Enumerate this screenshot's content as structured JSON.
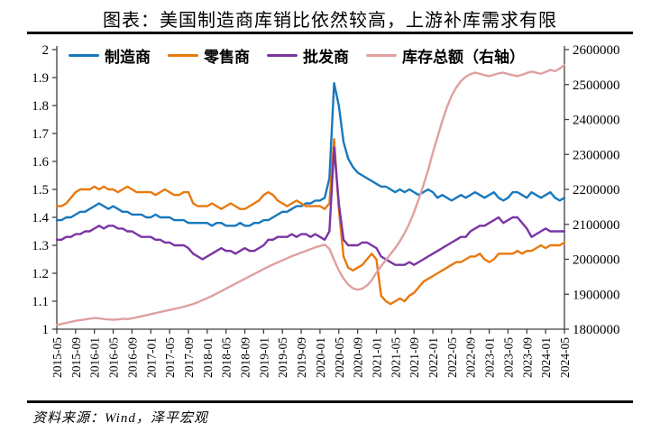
{
  "title": "图表：美国制造商库销比依然较高，上游补库需求有限",
  "source": "资料来源：Wind，泽平宏观",
  "colors": {
    "manufacturer": "#1878BD",
    "retailer": "#E8790F",
    "wholesaler": "#7A34A4",
    "total_inventory": "#DFA0A0",
    "axis": "#404040",
    "text": "#000000"
  },
  "chart_data": {
    "type": "line",
    "title": "图表：美国制造商库销比依然较高，上游补库需求有限",
    "xlabel": "",
    "ylabel_left": "",
    "ylabel_right": "",
    "grid": false,
    "legend_position": "top",
    "left_axis": {
      "min": 1,
      "max": 2,
      "ticks": [
        "2",
        "1.9",
        "1.8",
        "1.7",
        "1.6",
        "1.5",
        "1.4",
        "1.3",
        "1.2",
        "1.1",
        "1"
      ]
    },
    "right_axis": {
      "min": 1800000,
      "max": 2600000,
      "ticks": [
        "2600000",
        "2500000",
        "2400000",
        "2300000",
        "2200000",
        "2100000",
        "2000000",
        "1900000",
        "1800000"
      ]
    },
    "x_tick_labels": [
      "2015-05",
      "2015-09",
      "2016-01",
      "2016-05",
      "2016-09",
      "2017-01",
      "2017-05",
      "2017-09",
      "2018-01",
      "2018-05",
      "2018-09",
      "2019-01",
      "2019-05",
      "2019-09",
      "2020-01",
      "2020-05",
      "2020-09",
      "2021-01",
      "2021-05",
      "2021-09",
      "2022-01",
      "2022-05",
      "2022-09",
      "2023-01",
      "2023-05",
      "2023-09",
      "2024-01",
      "2024-05"
    ],
    "x": [
      "2015-05",
      "2015-06",
      "2015-07",
      "2015-08",
      "2015-09",
      "2015-10",
      "2015-11",
      "2015-12",
      "2016-01",
      "2016-02",
      "2016-03",
      "2016-04",
      "2016-05",
      "2016-06",
      "2016-07",
      "2016-08",
      "2016-09",
      "2016-10",
      "2016-11",
      "2016-12",
      "2017-01",
      "2017-02",
      "2017-03",
      "2017-04",
      "2017-05",
      "2017-06",
      "2017-07",
      "2017-08",
      "2017-09",
      "2017-10",
      "2017-11",
      "2017-12",
      "2018-01",
      "2018-02",
      "2018-03",
      "2018-04",
      "2018-05",
      "2018-06",
      "2018-07",
      "2018-08",
      "2018-09",
      "2018-10",
      "2018-11",
      "2018-12",
      "2019-01",
      "2019-02",
      "2019-03",
      "2019-04",
      "2019-05",
      "2019-06",
      "2019-07",
      "2019-08",
      "2019-09",
      "2019-10",
      "2019-11",
      "2019-12",
      "2020-01",
      "2020-02",
      "2020-03",
      "2020-04",
      "2020-05",
      "2020-06",
      "2020-07",
      "2020-08",
      "2020-09",
      "2020-10",
      "2020-11",
      "2020-12",
      "2021-01",
      "2021-02",
      "2021-03",
      "2021-04",
      "2021-05",
      "2021-06",
      "2021-07",
      "2021-08",
      "2021-09",
      "2021-10",
      "2021-11",
      "2021-12",
      "2022-01",
      "2022-02",
      "2022-03",
      "2022-04",
      "2022-05",
      "2022-06",
      "2022-07",
      "2022-08",
      "2022-09",
      "2022-10",
      "2022-11",
      "2022-12",
      "2023-01",
      "2023-02",
      "2023-03",
      "2023-04",
      "2023-05",
      "2023-06",
      "2023-07",
      "2023-08",
      "2023-09",
      "2023-10",
      "2023-11",
      "2023-12",
      "2024-01",
      "2024-02",
      "2024-03",
      "2024-04",
      "2024-05"
    ],
    "series": [
      {
        "id": "manufacturer",
        "name": "制造商",
        "axis": "left",
        "color": "#1878BD",
        "values": [
          1.39,
          1.39,
          1.4,
          1.4,
          1.41,
          1.42,
          1.42,
          1.43,
          1.44,
          1.45,
          1.44,
          1.43,
          1.44,
          1.43,
          1.42,
          1.42,
          1.41,
          1.41,
          1.41,
          1.4,
          1.4,
          1.41,
          1.4,
          1.4,
          1.4,
          1.39,
          1.39,
          1.39,
          1.38,
          1.38,
          1.38,
          1.38,
          1.38,
          1.37,
          1.38,
          1.38,
          1.37,
          1.37,
          1.37,
          1.38,
          1.37,
          1.37,
          1.38,
          1.38,
          1.39,
          1.39,
          1.4,
          1.41,
          1.42,
          1.42,
          1.43,
          1.44,
          1.44,
          1.45,
          1.45,
          1.46,
          1.46,
          1.47,
          1.54,
          1.88,
          1.8,
          1.67,
          1.61,
          1.58,
          1.56,
          1.55,
          1.54,
          1.53,
          1.52,
          1.51,
          1.51,
          1.5,
          1.49,
          1.5,
          1.49,
          1.5,
          1.49,
          1.48,
          1.49,
          1.5,
          1.49,
          1.47,
          1.48,
          1.47,
          1.46,
          1.47,
          1.48,
          1.47,
          1.48,
          1.49,
          1.48,
          1.47,
          1.48,
          1.49,
          1.47,
          1.46,
          1.47,
          1.49,
          1.49,
          1.48,
          1.47,
          1.49,
          1.48,
          1.47,
          1.48,
          1.49,
          1.47,
          1.46,
          1.47
        ]
      },
      {
        "id": "retailer",
        "name": "零售商",
        "axis": "left",
        "color": "#E8790F",
        "values": [
          1.44,
          1.44,
          1.45,
          1.47,
          1.49,
          1.5,
          1.5,
          1.5,
          1.51,
          1.5,
          1.51,
          1.5,
          1.5,
          1.49,
          1.5,
          1.51,
          1.5,
          1.49,
          1.49,
          1.49,
          1.49,
          1.48,
          1.49,
          1.5,
          1.49,
          1.48,
          1.48,
          1.49,
          1.49,
          1.45,
          1.44,
          1.44,
          1.44,
          1.45,
          1.44,
          1.43,
          1.44,
          1.45,
          1.44,
          1.43,
          1.43,
          1.44,
          1.45,
          1.46,
          1.48,
          1.49,
          1.48,
          1.46,
          1.45,
          1.44,
          1.45,
          1.46,
          1.45,
          1.44,
          1.44,
          1.44,
          1.44,
          1.43,
          1.45,
          1.68,
          1.43,
          1.26,
          1.22,
          1.21,
          1.22,
          1.23,
          1.25,
          1.27,
          1.25,
          1.12,
          1.1,
          1.09,
          1.1,
          1.11,
          1.1,
          1.12,
          1.13,
          1.15,
          1.17,
          1.18,
          1.19,
          1.2,
          1.21,
          1.22,
          1.23,
          1.24,
          1.24,
          1.25,
          1.26,
          1.26,
          1.27,
          1.25,
          1.24,
          1.25,
          1.27,
          1.27,
          1.27,
          1.27,
          1.28,
          1.27,
          1.28,
          1.28,
          1.29,
          1.3,
          1.29,
          1.3,
          1.3,
          1.3,
          1.31
        ]
      },
      {
        "id": "wholesaler",
        "name": "批发商",
        "axis": "left",
        "color": "#7A34A4",
        "values": [
          1.32,
          1.32,
          1.33,
          1.33,
          1.34,
          1.34,
          1.35,
          1.35,
          1.36,
          1.37,
          1.36,
          1.37,
          1.37,
          1.36,
          1.36,
          1.35,
          1.35,
          1.34,
          1.33,
          1.33,
          1.33,
          1.32,
          1.32,
          1.31,
          1.31,
          1.3,
          1.3,
          1.3,
          1.29,
          1.27,
          1.26,
          1.25,
          1.26,
          1.27,
          1.28,
          1.29,
          1.28,
          1.28,
          1.27,
          1.28,
          1.29,
          1.28,
          1.28,
          1.29,
          1.3,
          1.32,
          1.32,
          1.33,
          1.33,
          1.33,
          1.34,
          1.33,
          1.34,
          1.34,
          1.33,
          1.34,
          1.33,
          1.32,
          1.35,
          1.65,
          1.45,
          1.32,
          1.3,
          1.3,
          1.3,
          1.31,
          1.31,
          1.3,
          1.29,
          1.26,
          1.25,
          1.24,
          1.23,
          1.23,
          1.23,
          1.24,
          1.23,
          1.24,
          1.25,
          1.26,
          1.27,
          1.28,
          1.29,
          1.3,
          1.31,
          1.32,
          1.33,
          1.33,
          1.35,
          1.36,
          1.37,
          1.37,
          1.38,
          1.39,
          1.4,
          1.38,
          1.39,
          1.4,
          1.4,
          1.38,
          1.36,
          1.33,
          1.34,
          1.35,
          1.36,
          1.35,
          1.35,
          1.35,
          1.35
        ]
      },
      {
        "id": "total-inventory",
        "name": "库存总额（右轴）",
        "axis": "right",
        "color": "#DFA0A0",
        "values": [
          1812000,
          1815000,
          1818000,
          1821000,
          1824000,
          1826000,
          1828000,
          1830000,
          1832000,
          1831000,
          1829000,
          1828000,
          1827000,
          1828000,
          1830000,
          1829000,
          1831000,
          1834000,
          1837000,
          1840000,
          1843000,
          1846000,
          1849000,
          1852000,
          1855000,
          1858000,
          1861000,
          1864000,
          1868000,
          1872000,
          1877000,
          1883000,
          1889000,
          1895000,
          1902000,
          1909000,
          1916000,
          1923000,
          1930000,
          1937000,
          1944000,
          1951000,
          1958000,
          1965000,
          1972000,
          1979000,
          1985000,
          1991000,
          1997000,
          2003000,
          2009000,
          2014000,
          2019000,
          2024000,
          2029000,
          2034000,
          2038000,
          2042000,
          2030000,
          1998000,
          1968000,
          1945000,
          1928000,
          1917000,
          1913000,
          1916000,
          1925000,
          1940000,
          1962000,
          1980000,
          1998000,
          2015000,
          2032000,
          2052000,
          2075000,
          2102000,
          2135000,
          2172000,
          2212000,
          2255000,
          2305000,
          2350000,
          2395000,
          2435000,
          2468000,
          2492000,
          2510000,
          2522000,
          2530000,
          2534000,
          2531000,
          2527000,
          2524000,
          2528000,
          2532000,
          2534000,
          2530000,
          2527000,
          2524000,
          2528000,
          2533000,
          2537000,
          2534000,
          2531000,
          2536000,
          2542000,
          2538000,
          2546000,
          2556000
        ]
      }
    ]
  }
}
